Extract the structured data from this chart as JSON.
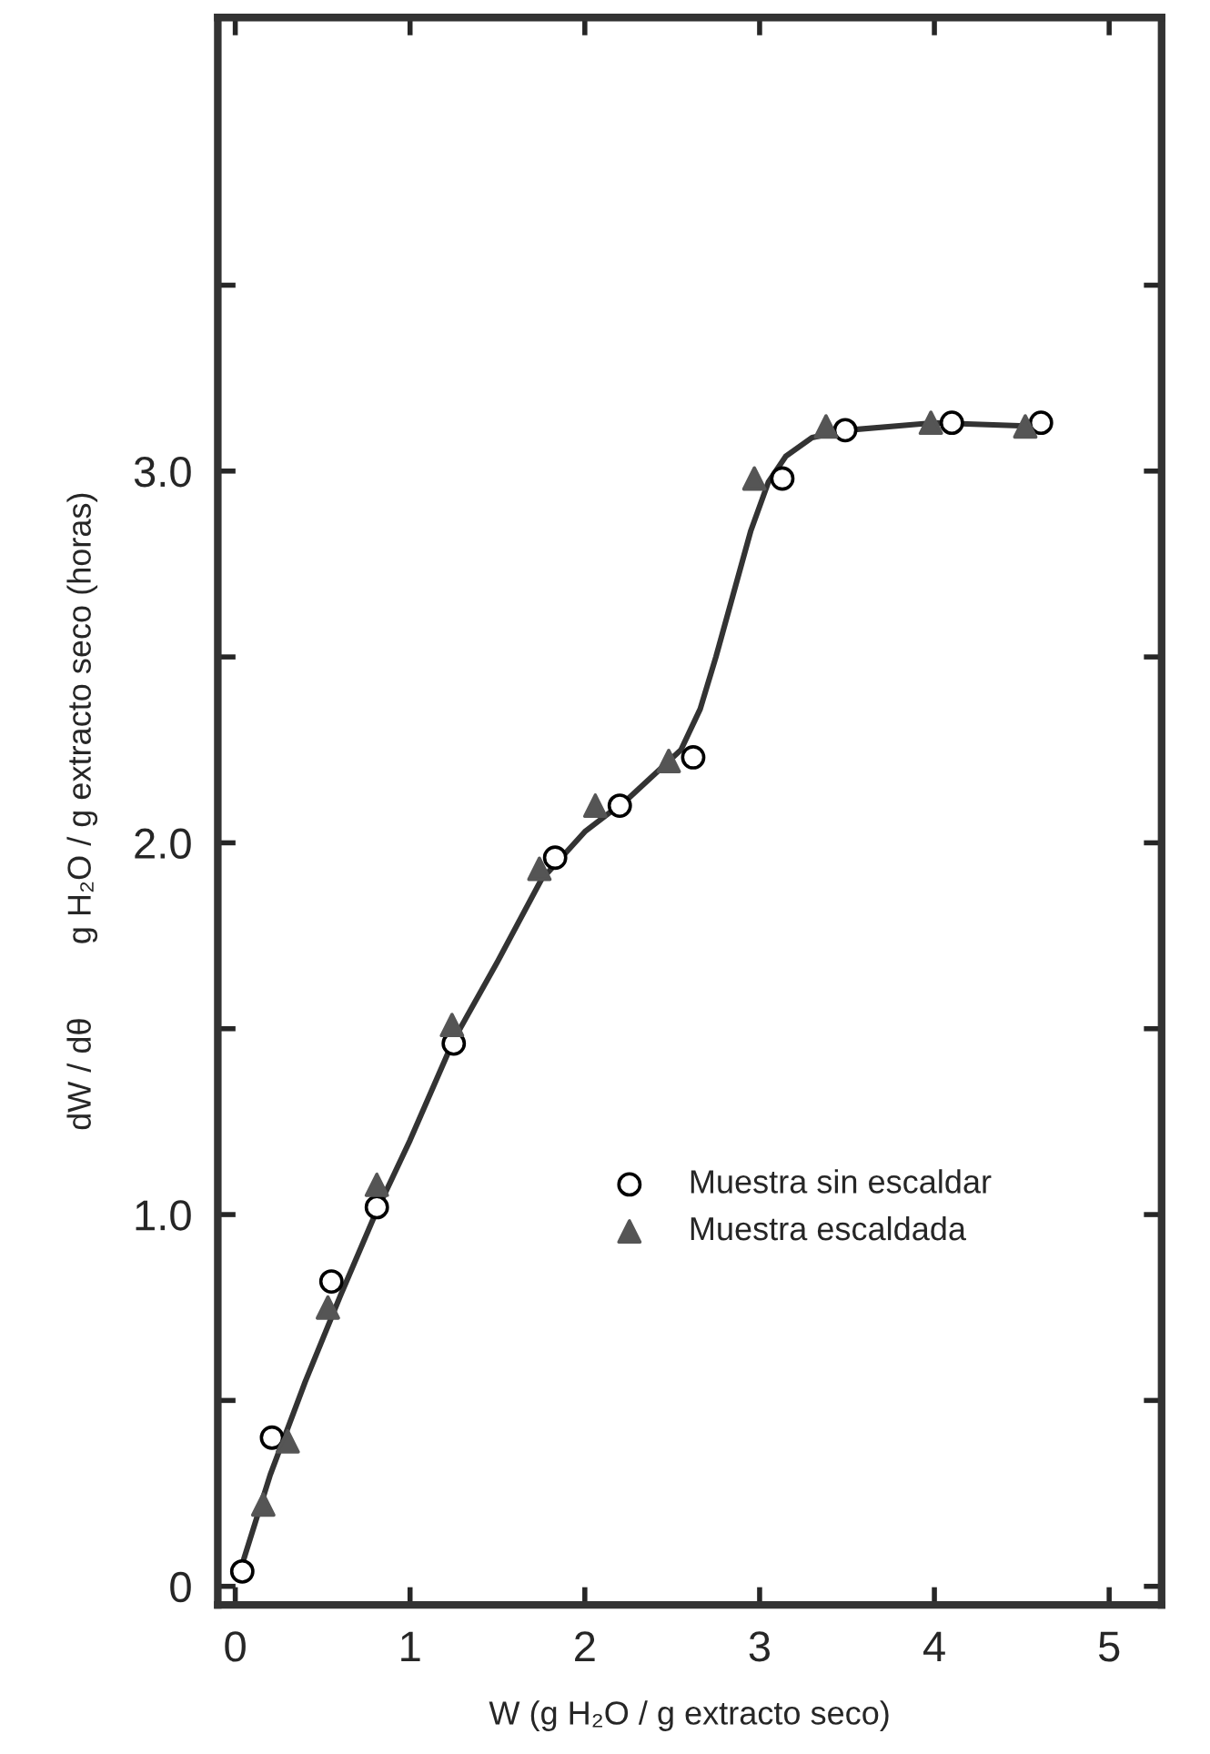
{
  "chart_data": {
    "type": "scatter",
    "xlabel": "W (g H₂O / g extracto seco)",
    "ylabel": "dW / dθ        g H₂O / g extracto seco (horas)",
    "xlim": [
      -0.1,
      5.3
    ],
    "ylim": [
      -0.05,
      4.22
    ],
    "xticks": [
      {
        "value": 0,
        "label": "0"
      },
      1,
      2,
      3,
      4,
      5
    ],
    "yticks": [
      {
        "value": 0,
        "label": "0"
      },
      {
        "value": 0.5,
        "label": null
      },
      {
        "value": 1,
        "label": "1.0"
      },
      {
        "value": 1.5,
        "label": null
      },
      {
        "value": 2,
        "label": "2.0"
      },
      {
        "value": 2.5,
        "label": null
      },
      {
        "value": 3,
        "label": "3.0"
      },
      {
        "value": 3.5,
        "label": null
      }
    ],
    "grid": false,
    "legend": "center",
    "series": [
      {
        "name": "Muestra sin escaldar",
        "color": "#ffffff",
        "marker": "circle",
        "x": [
          0.04,
          0.21,
          0.55,
          0.81,
          1.25,
          1.83,
          2.2,
          2.62,
          3.13,
          3.49,
          4.1,
          4.61
        ],
        "values": [
          0.04,
          0.4,
          0.82,
          1.02,
          1.46,
          1.96,
          2.1,
          2.23,
          2.98,
          3.11,
          3.13,
          3.13
        ]
      },
      {
        "name": "Muestra escaldada",
        "color": "#555555",
        "marker": "triangle",
        "x": [
          0.16,
          0.3,
          0.53,
          0.81,
          1.24,
          1.74,
          2.06,
          2.48,
          2.97,
          3.38,
          3.98,
          4.52
        ],
        "values": [
          0.22,
          0.39,
          0.75,
          1.08,
          1.51,
          1.93,
          2.1,
          2.22,
          2.98,
          3.12,
          3.13,
          3.12
        ]
      },
      {
        "type": "line",
        "color": "#333333",
        "marker": "none",
        "line_style": "solid",
        "x": [
          0.04,
          0.2,
          0.4,
          0.6,
          0.8,
          1.0,
          1.25,
          1.5,
          1.75,
          2.0,
          2.25,
          2.55,
          2.66,
          2.75,
          2.85,
          2.95,
          3.05,
          3.15,
          3.3,
          3.5,
          4.0,
          4.6
        ],
        "values": [
          0.06,
          0.3,
          0.55,
          0.78,
          1.0,
          1.2,
          1.47,
          1.68,
          1.9,
          2.03,
          2.12,
          2.25,
          2.36,
          2.5,
          2.67,
          2.84,
          2.97,
          3.04,
          3.09,
          3.11,
          3.13,
          3.12
        ]
      }
    ]
  }
}
